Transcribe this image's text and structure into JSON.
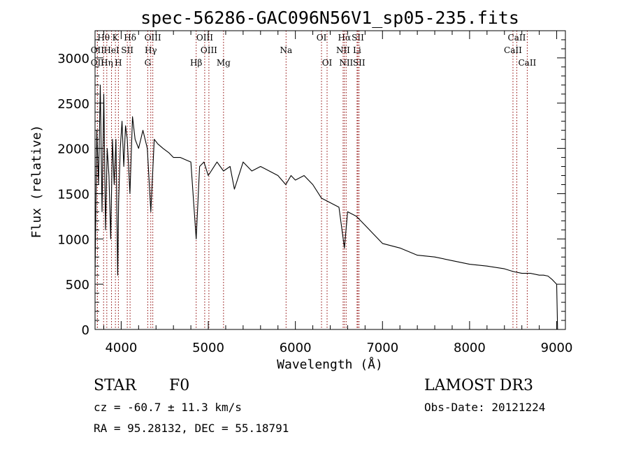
{
  "chart_data": {
    "type": "line",
    "title": "spec-56286-GAC096N56V1_sp05-235.fits",
    "xlabel": "Wavelength (Å)",
    "ylabel": "Flux (relative)",
    "xlim": [
      3700,
      9100
    ],
    "ylim": [
      0,
      3300
    ],
    "xticks": [
      4000,
      5000,
      6000,
      7000,
      8000,
      9000
    ],
    "yticks": [
      0,
      500,
      1000,
      1500,
      2000,
      2500,
      3000
    ],
    "grid": false,
    "series": [
      {
        "name": "spectrum",
        "x": [
          3700,
          3720,
          3740,
          3760,
          3780,
          3800,
          3820,
          3840,
          3860,
          3880,
          3900,
          3920,
          3940,
          3960,
          3970,
          3990,
          4010,
          4030,
          4050,
          4070,
          4100,
          4130,
          4160,
          4200,
          4250,
          4300,
          4340,
          4380,
          4420,
          4480,
          4550,
          4600,
          4680,
          4750,
          4800,
          4861,
          4900,
          4950,
          5000,
          5100,
          5175,
          5250,
          5300,
          5400,
          5500,
          5600,
          5700,
          5800,
          5890,
          5950,
          6000,
          6100,
          6200,
          6300,
          6400,
          6500,
          6563,
          6600,
          6700,
          6800,
          6900,
          7000,
          7200,
          7400,
          7600,
          7800,
          8000,
          8200,
          8400,
          8500,
          8600,
          8700,
          8800,
          8850,
          8900,
          8950,
          9000,
          9010
        ],
        "y": [
          600,
          2200,
          1600,
          2700,
          1300,
          2600,
          1100,
          2000,
          1700,
          1000,
          2100,
          1600,
          2100,
          600,
          1400,
          2000,
          2300,
          1800,
          2250,
          2100,
          1500,
          2350,
          2100,
          2000,
          2200,
          2000,
          1300,
          2100,
          2050,
          2000,
          1950,
          1900,
          1900,
          1870,
          1850,
          1000,
          1800,
          1850,
          1700,
          1850,
          1750,
          1800,
          1550,
          1850,
          1750,
          1800,
          1750,
          1700,
          1600,
          1700,
          1650,
          1700,
          1600,
          1450,
          1400,
          1350,
          900,
          1300,
          1250,
          1150,
          1050,
          950,
          900,
          820,
          800,
          760,
          720,
          700,
          670,
          640,
          620,
          620,
          600,
          600,
          590,
          550,
          500,
          0
        ]
      }
    ],
    "spectral_lines": [
      {
        "label": "Hθ",
        "wavelength": 3798,
        "row": 0
      },
      {
        "label": "K",
        "wavelength": 3934,
        "row": 0
      },
      {
        "label": "Hδ",
        "wavelength": 4102,
        "row": 0
      },
      {
        "label": "OIII",
        "wavelength": 4363,
        "row": 0
      },
      {
        "label": "OIII",
        "wavelength": 4959,
        "row": 0
      },
      {
        "label": "OI",
        "wavelength": 6300,
        "row": 0
      },
      {
        "label": "Hα",
        "wavelength": 6563,
        "row": 0
      },
      {
        "label": "SII",
        "wavelength": 6717,
        "row": 0
      },
      {
        "label": "CaII",
        "wavelength": 8542,
        "row": 0
      },
      {
        "label": "OII",
        "wavelength": 3727,
        "row": 1
      },
      {
        "label": "HeI",
        "wavelength": 3889,
        "row": 1
      },
      {
        "label": "SII",
        "wavelength": 4070,
        "row": 1
      },
      {
        "label": "Hγ",
        "wavelength": 4340,
        "row": 1
      },
      {
        "label": "OIII",
        "wavelength": 5007,
        "row": 1
      },
      {
        "label": "Na",
        "wavelength": 5893,
        "row": 1
      },
      {
        "label": "NII",
        "wavelength": 6548,
        "row": 1
      },
      {
        "label": "Li",
        "wavelength": 6708,
        "row": 1
      },
      {
        "label": "CaII",
        "wavelength": 8498,
        "row": 1
      },
      {
        "label": "OII",
        "wavelength": 3727,
        "row": 2
      },
      {
        "label": "Hη",
        "wavelength": 3835,
        "row": 2
      },
      {
        "label": "H",
        "wavelength": 3968,
        "row": 2
      },
      {
        "label": "G",
        "wavelength": 4305,
        "row": 2
      },
      {
        "label": "Hβ",
        "wavelength": 4861,
        "row": 2
      },
      {
        "label": "Mg",
        "wavelength": 5175,
        "row": 2
      },
      {
        "label": "OI",
        "wavelength": 6364,
        "row": 2
      },
      {
        "label": "NII",
        "wavelength": 6583,
        "row": 2
      },
      {
        "label": "SII",
        "wavelength": 6731,
        "row": 2
      },
      {
        "label": "CaII",
        "wavelength": 8662,
        "row": 2
      }
    ],
    "line_color": "#8b0000",
    "trace_color": "#000000"
  },
  "info": {
    "object_class": "STAR",
    "subclass": "F0",
    "survey": "LAMOST DR3",
    "redshift": "cz = -60.7 ± 11.3 km/s",
    "obs_date": "Obs-Date: 20121224",
    "coords": "RA =  95.28132, DEC =  55.18791"
  }
}
